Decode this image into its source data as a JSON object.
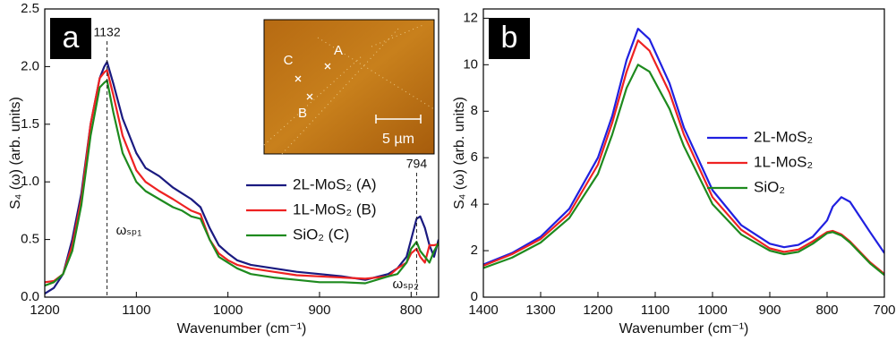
{
  "chart_data": [
    {
      "type": "line",
      "panel_label": "a",
      "x_label": "Wavenumber (cm⁻¹)",
      "y_label": "S₄ (ω) (arb. units)",
      "x": [
        1200,
        1190,
        1180,
        1170,
        1160,
        1150,
        1140,
        1135,
        1132,
        1125,
        1115,
        1100,
        1090,
        1075,
        1060,
        1050,
        1040,
        1030,
        1020,
        1010,
        1000,
        990,
        975,
        950,
        925,
        900,
        875,
        850,
        825,
        815,
        805,
        800,
        794,
        790,
        785,
        780,
        775,
        770
      ],
      "series": [
        {
          "name": "2L-MoS₂ (A)",
          "color": "#1a1a80",
          "values": [
            0.03,
            0.08,
            0.2,
            0.5,
            0.9,
            1.5,
            1.9,
            2.0,
            2.04,
            1.85,
            1.55,
            1.25,
            1.12,
            1.05,
            0.95,
            0.9,
            0.85,
            0.78,
            0.6,
            0.45,
            0.38,
            0.32,
            0.28,
            0.25,
            0.22,
            0.2,
            0.18,
            0.15,
            0.2,
            0.25,
            0.35,
            0.5,
            0.68,
            0.7,
            0.6,
            0.45,
            0.35,
            0.5
          ]
        },
        {
          "name": "1L-MoS₂ (B)",
          "color": "#ee2222",
          "values": [
            0.13,
            0.14,
            0.2,
            0.45,
            0.85,
            1.5,
            1.9,
            1.95,
            1.97,
            1.75,
            1.4,
            1.1,
            1.0,
            0.92,
            0.85,
            0.8,
            0.75,
            0.72,
            0.5,
            0.38,
            0.32,
            0.28,
            0.25,
            0.22,
            0.19,
            0.18,
            0.17,
            0.16,
            0.18,
            0.25,
            0.3,
            0.38,
            0.42,
            0.35,
            0.3,
            0.45,
            0.45,
            0.46
          ]
        },
        {
          "name": "SiO₂ (C)",
          "color": "#1e8a1e",
          "values": [
            0.1,
            0.13,
            0.2,
            0.4,
            0.8,
            1.4,
            1.82,
            1.86,
            1.88,
            1.6,
            1.25,
            1.0,
            0.92,
            0.85,
            0.78,
            0.75,
            0.7,
            0.68,
            0.5,
            0.35,
            0.3,
            0.25,
            0.2,
            0.17,
            0.15,
            0.13,
            0.13,
            0.12,
            0.18,
            0.2,
            0.3,
            0.42,
            0.48,
            0.4,
            0.35,
            0.3,
            0.4,
            0.47
          ]
        }
      ],
      "xlim": [
        1200,
        770
      ],
      "xticks": [
        1200,
        1100,
        1000,
        900,
        800
      ],
      "ylim": [
        0,
        2.5
      ],
      "yticks": [
        {
          "value": 0,
          "label": "0.0"
        },
        {
          "value": 0.5,
          "label": "0.5"
        },
        {
          "value": 1,
          "label": "1.0"
        },
        {
          "value": 1.5,
          "label": "1.5"
        },
        {
          "value": 2,
          "label": "2.0"
        },
        {
          "value": 2.5,
          "label": "2.5"
        }
      ],
      "legend": "center right",
      "vlines": [
        {
          "x": 1132,
          "label": "1132",
          "mode": "ωₛₚ₁"
        },
        {
          "x": 794,
          "label": "794",
          "mode": "ωₛₚ₂"
        }
      ],
      "inset": {
        "points": [
          "A",
          "B",
          "C"
        ],
        "scale_bar": "5 µm"
      }
    },
    {
      "type": "line",
      "panel_label": "b",
      "x_label": "Wavenumber (cm⁻¹)",
      "y_label": "S₄ (ω) (arb. units)",
      "x": [
        1400,
        1350,
        1300,
        1250,
        1200,
        1175,
        1150,
        1130,
        1110,
        1075,
        1050,
        1000,
        950,
        900,
        875,
        850,
        825,
        800,
        790,
        775,
        760,
        725,
        700
      ],
      "series": [
        {
          "name": "2L-MoS₂",
          "color": "#2020e0",
          "values": [
            1.4,
            1.9,
            2.6,
            3.8,
            6.0,
            7.8,
            10.2,
            11.55,
            11.1,
            9.2,
            7.3,
            4.6,
            3.1,
            2.3,
            2.15,
            2.25,
            2.6,
            3.3,
            3.9,
            4.3,
            4.1,
            2.8,
            1.9
          ]
        },
        {
          "name": "1L-MoS₂",
          "color": "#ee2222",
          "values": [
            1.35,
            1.85,
            2.5,
            3.6,
            5.7,
            7.5,
            9.7,
            11.05,
            10.6,
            8.8,
            7.0,
            4.3,
            2.9,
            2.1,
            1.95,
            2.05,
            2.4,
            2.8,
            2.85,
            2.7,
            2.4,
            1.5,
            1.0
          ]
        },
        {
          "name": "SiO₂",
          "color": "#1e8a1e",
          "values": [
            1.25,
            1.7,
            2.35,
            3.4,
            5.3,
            7.0,
            9.0,
            10.0,
            9.7,
            8.1,
            6.5,
            4.0,
            2.7,
            2.0,
            1.85,
            1.95,
            2.3,
            2.75,
            2.8,
            2.65,
            2.35,
            1.45,
            0.95
          ]
        }
      ],
      "xlim": [
        1400,
        700
      ],
      "xticks": [
        1400,
        1300,
        1200,
        1100,
        1000,
        900,
        800,
        700
      ],
      "ylim": [
        0,
        12.4
      ],
      "yticks": [
        0,
        2,
        4,
        6,
        8,
        10,
        12
      ],
      "legend": "center right"
    }
  ]
}
